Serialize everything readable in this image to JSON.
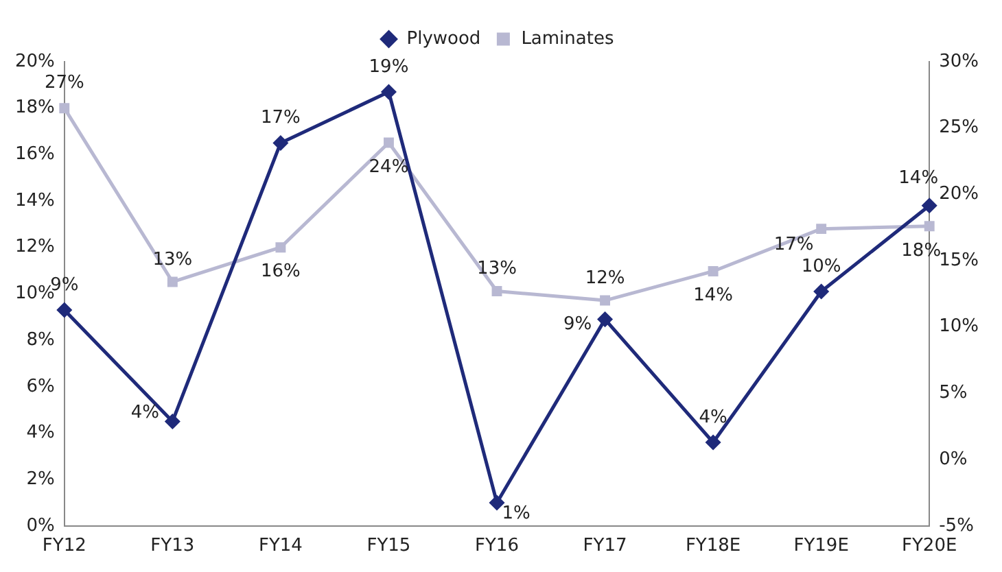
{
  "chart_data": {
    "type": "line",
    "categories": [
      "FY12",
      "FY13",
      "FY14",
      "FY15",
      "FY16",
      "FY17",
      "FY18E",
      "FY19E",
      "FY20E"
    ],
    "series": [
      {
        "name": "Plywood",
        "color": "#1f2a7a",
        "marker": "diamond",
        "values": [
          9.3,
          4.5,
          16.5,
          18.7,
          1.0,
          8.9,
          3.6,
          10.1,
          13.8
        ],
        "value_labels": [
          "9%",
          "4%",
          "17%",
          "19%",
          "1%",
          "9%",
          "4%",
          "10%",
          "14%"
        ]
      },
      {
        "name": "Laminates",
        "color": "#b8b8d2",
        "marker": "square",
        "axis": "y2",
        "values": [
          26.5,
          13.4,
          16.0,
          23.9,
          12.7,
          12.0,
          14.2,
          17.4,
          17.6
        ],
        "value_labels": [
          "27%",
          "13%",
          "16%",
          "24%",
          "13%",
          "12%",
          "14%",
          "17%",
          "18%"
        ]
      }
    ],
    "ylim": [
      0,
      20
    ],
    "yticks": [
      {
        "value": 0,
        "label": "0%"
      },
      {
        "value": 2,
        "label": "2%"
      },
      {
        "value": 4,
        "label": "4%"
      },
      {
        "value": 6,
        "label": "6%"
      },
      {
        "value": 8,
        "label": "8%"
      },
      {
        "value": 10,
        "label": "10%"
      },
      {
        "value": 12,
        "label": "12%"
      },
      {
        "value": 14,
        "label": "14%"
      },
      {
        "value": 16,
        "label": "16%"
      },
      {
        "value": 18,
        "label": "18%"
      },
      {
        "value": 20,
        "label": "20%"
      }
    ],
    "y2lim": [
      -5,
      30
    ],
    "y2ticks": [
      {
        "value": -5,
        "label": "-5%"
      },
      {
        "value": 0,
        "label": "0%"
      },
      {
        "value": 5,
        "label": "5%"
      },
      {
        "value": 10,
        "label": "10%"
      },
      {
        "value": 15,
        "label": "15%"
      },
      {
        "value": 20,
        "label": "20%"
      },
      {
        "value": 25,
        "label": "25%"
      },
      {
        "value": 30,
        "label": "30%"
      }
    ],
    "grid": false,
    "legend": "top",
    "line_style": "solid"
  }
}
